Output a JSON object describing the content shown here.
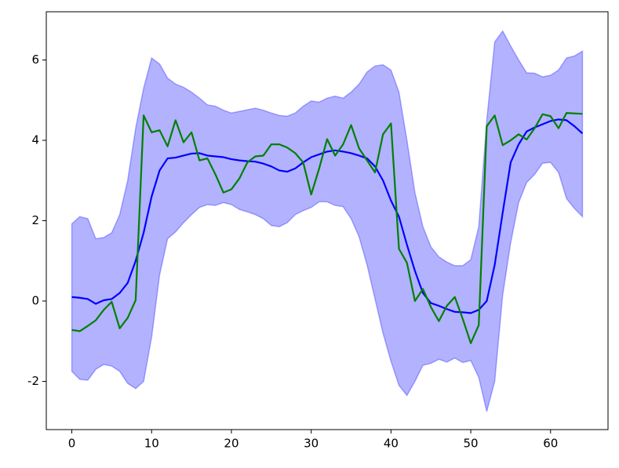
{
  "chart_data": {
    "type": "line",
    "x": [
      0,
      1,
      2,
      3,
      4,
      5,
      6,
      7,
      8,
      9,
      10,
      11,
      12,
      13,
      14,
      15,
      16,
      17,
      18,
      19,
      20,
      21,
      22,
      23,
      24,
      25,
      26,
      27,
      28,
      29,
      30,
      31,
      32,
      33,
      34,
      35,
      36,
      37,
      38,
      39,
      40,
      41,
      42,
      43,
      44,
      45,
      46,
      47,
      48,
      49,
      50,
      51,
      52,
      53,
      54,
      55,
      56,
      57,
      58,
      59,
      60,
      61,
      62,
      63,
      64
    ],
    "band": {
      "color": "#0000ff",
      "alpha": 0.3,
      "upper": [
        1.92,
        2.1,
        2.05,
        1.55,
        1.58,
        1.7,
        2.15,
        3.0,
        4.3,
        5.3,
        6.05,
        5.9,
        5.55,
        5.4,
        5.32,
        5.2,
        5.05,
        4.88,
        4.85,
        4.75,
        4.68,
        4.72,
        4.76,
        4.8,
        4.75,
        4.68,
        4.62,
        4.6,
        4.68,
        4.85,
        4.98,
        4.95,
        5.05,
        5.1,
        5.05,
        5.2,
        5.4,
        5.7,
        5.85,
        5.88,
        5.75,
        5.2,
        4.0,
        2.7,
        1.85,
        1.35,
        1.1,
        0.97,
        0.88,
        0.88,
        1.03,
        1.85,
        4.5,
        6.45,
        6.72,
        6.35,
        6.0,
        5.68,
        5.67,
        5.58,
        5.62,
        5.75,
        6.05,
        6.1,
        6.22
      ],
      "lower": [
        -1.75,
        -1.95,
        -1.97,
        -1.7,
        -1.58,
        -1.62,
        -1.75,
        -2.05,
        -2.18,
        -2.0,
        -0.9,
        0.65,
        1.55,
        1.72,
        1.95,
        2.15,
        2.33,
        2.4,
        2.38,
        2.45,
        2.4,
        2.28,
        2.22,
        2.15,
        2.05,
        1.88,
        1.85,
        1.95,
        2.15,
        2.25,
        2.33,
        2.47,
        2.47,
        2.38,
        2.35,
        2.05,
        1.6,
        0.9,
        0.05,
        -0.8,
        -1.5,
        -2.1,
        -2.35,
        -2.0,
        -1.6,
        -1.55,
        -1.45,
        -1.52,
        -1.42,
        -1.53,
        -1.48,
        -1.9,
        -2.75,
        -2.0,
        0.15,
        1.45,
        2.45,
        2.95,
        3.15,
        3.43,
        3.45,
        3.2,
        2.55,
        2.3,
        2.1
      ]
    },
    "series": [
      {
        "color": "#0000ff",
        "values": [
          0.1,
          0.08,
          0.05,
          -0.07,
          0.02,
          0.05,
          0.2,
          0.45,
          1.0,
          1.7,
          2.6,
          3.25,
          3.55,
          3.57,
          3.62,
          3.67,
          3.68,
          3.62,
          3.6,
          3.58,
          3.53,
          3.5,
          3.48,
          3.47,
          3.42,
          3.35,
          3.25,
          3.22,
          3.3,
          3.45,
          3.58,
          3.65,
          3.72,
          3.75,
          3.72,
          3.68,
          3.62,
          3.55,
          3.35,
          3.0,
          2.5,
          2.1,
          1.4,
          0.75,
          0.2,
          -0.05,
          -0.12,
          -0.2,
          -0.27,
          -0.28,
          -0.3,
          -0.22,
          0.0,
          0.9,
          2.2,
          3.45,
          3.9,
          4.22,
          4.32,
          4.4,
          4.48,
          4.52,
          4.5,
          4.35,
          4.17
        ]
      },
      {
        "color": "#008000",
        "values": [
          -0.72,
          -0.75,
          -0.62,
          -0.48,
          -0.22,
          -0.02,
          -0.68,
          -0.42,
          0.02,
          4.62,
          4.2,
          4.25,
          3.85,
          4.5,
          3.95,
          4.2,
          3.5,
          3.55,
          3.15,
          2.7,
          2.78,
          3.05,
          3.45,
          3.6,
          3.62,
          3.9,
          3.9,
          3.82,
          3.68,
          3.45,
          2.65,
          3.3,
          4.03,
          3.62,
          3.9,
          4.38,
          3.8,
          3.5,
          3.2,
          4.15,
          4.42,
          1.3,
          0.95,
          0.0,
          0.3,
          -0.15,
          -0.5,
          -0.12,
          0.1,
          -0.45,
          -1.05,
          -0.6,
          4.35,
          4.62,
          3.88,
          4.0,
          4.15,
          4.02,
          4.3,
          4.65,
          4.6,
          4.3,
          4.68,
          4.67,
          4.66
        ]
      }
    ],
    "xlim": [
      -3.2,
      67.2
    ],
    "ylim": [
      -3.2,
      7.2
    ],
    "xticks": [
      0,
      10,
      20,
      30,
      40,
      50,
      60
    ],
    "yticks": [
      -2,
      0,
      2,
      4,
      6
    ]
  }
}
